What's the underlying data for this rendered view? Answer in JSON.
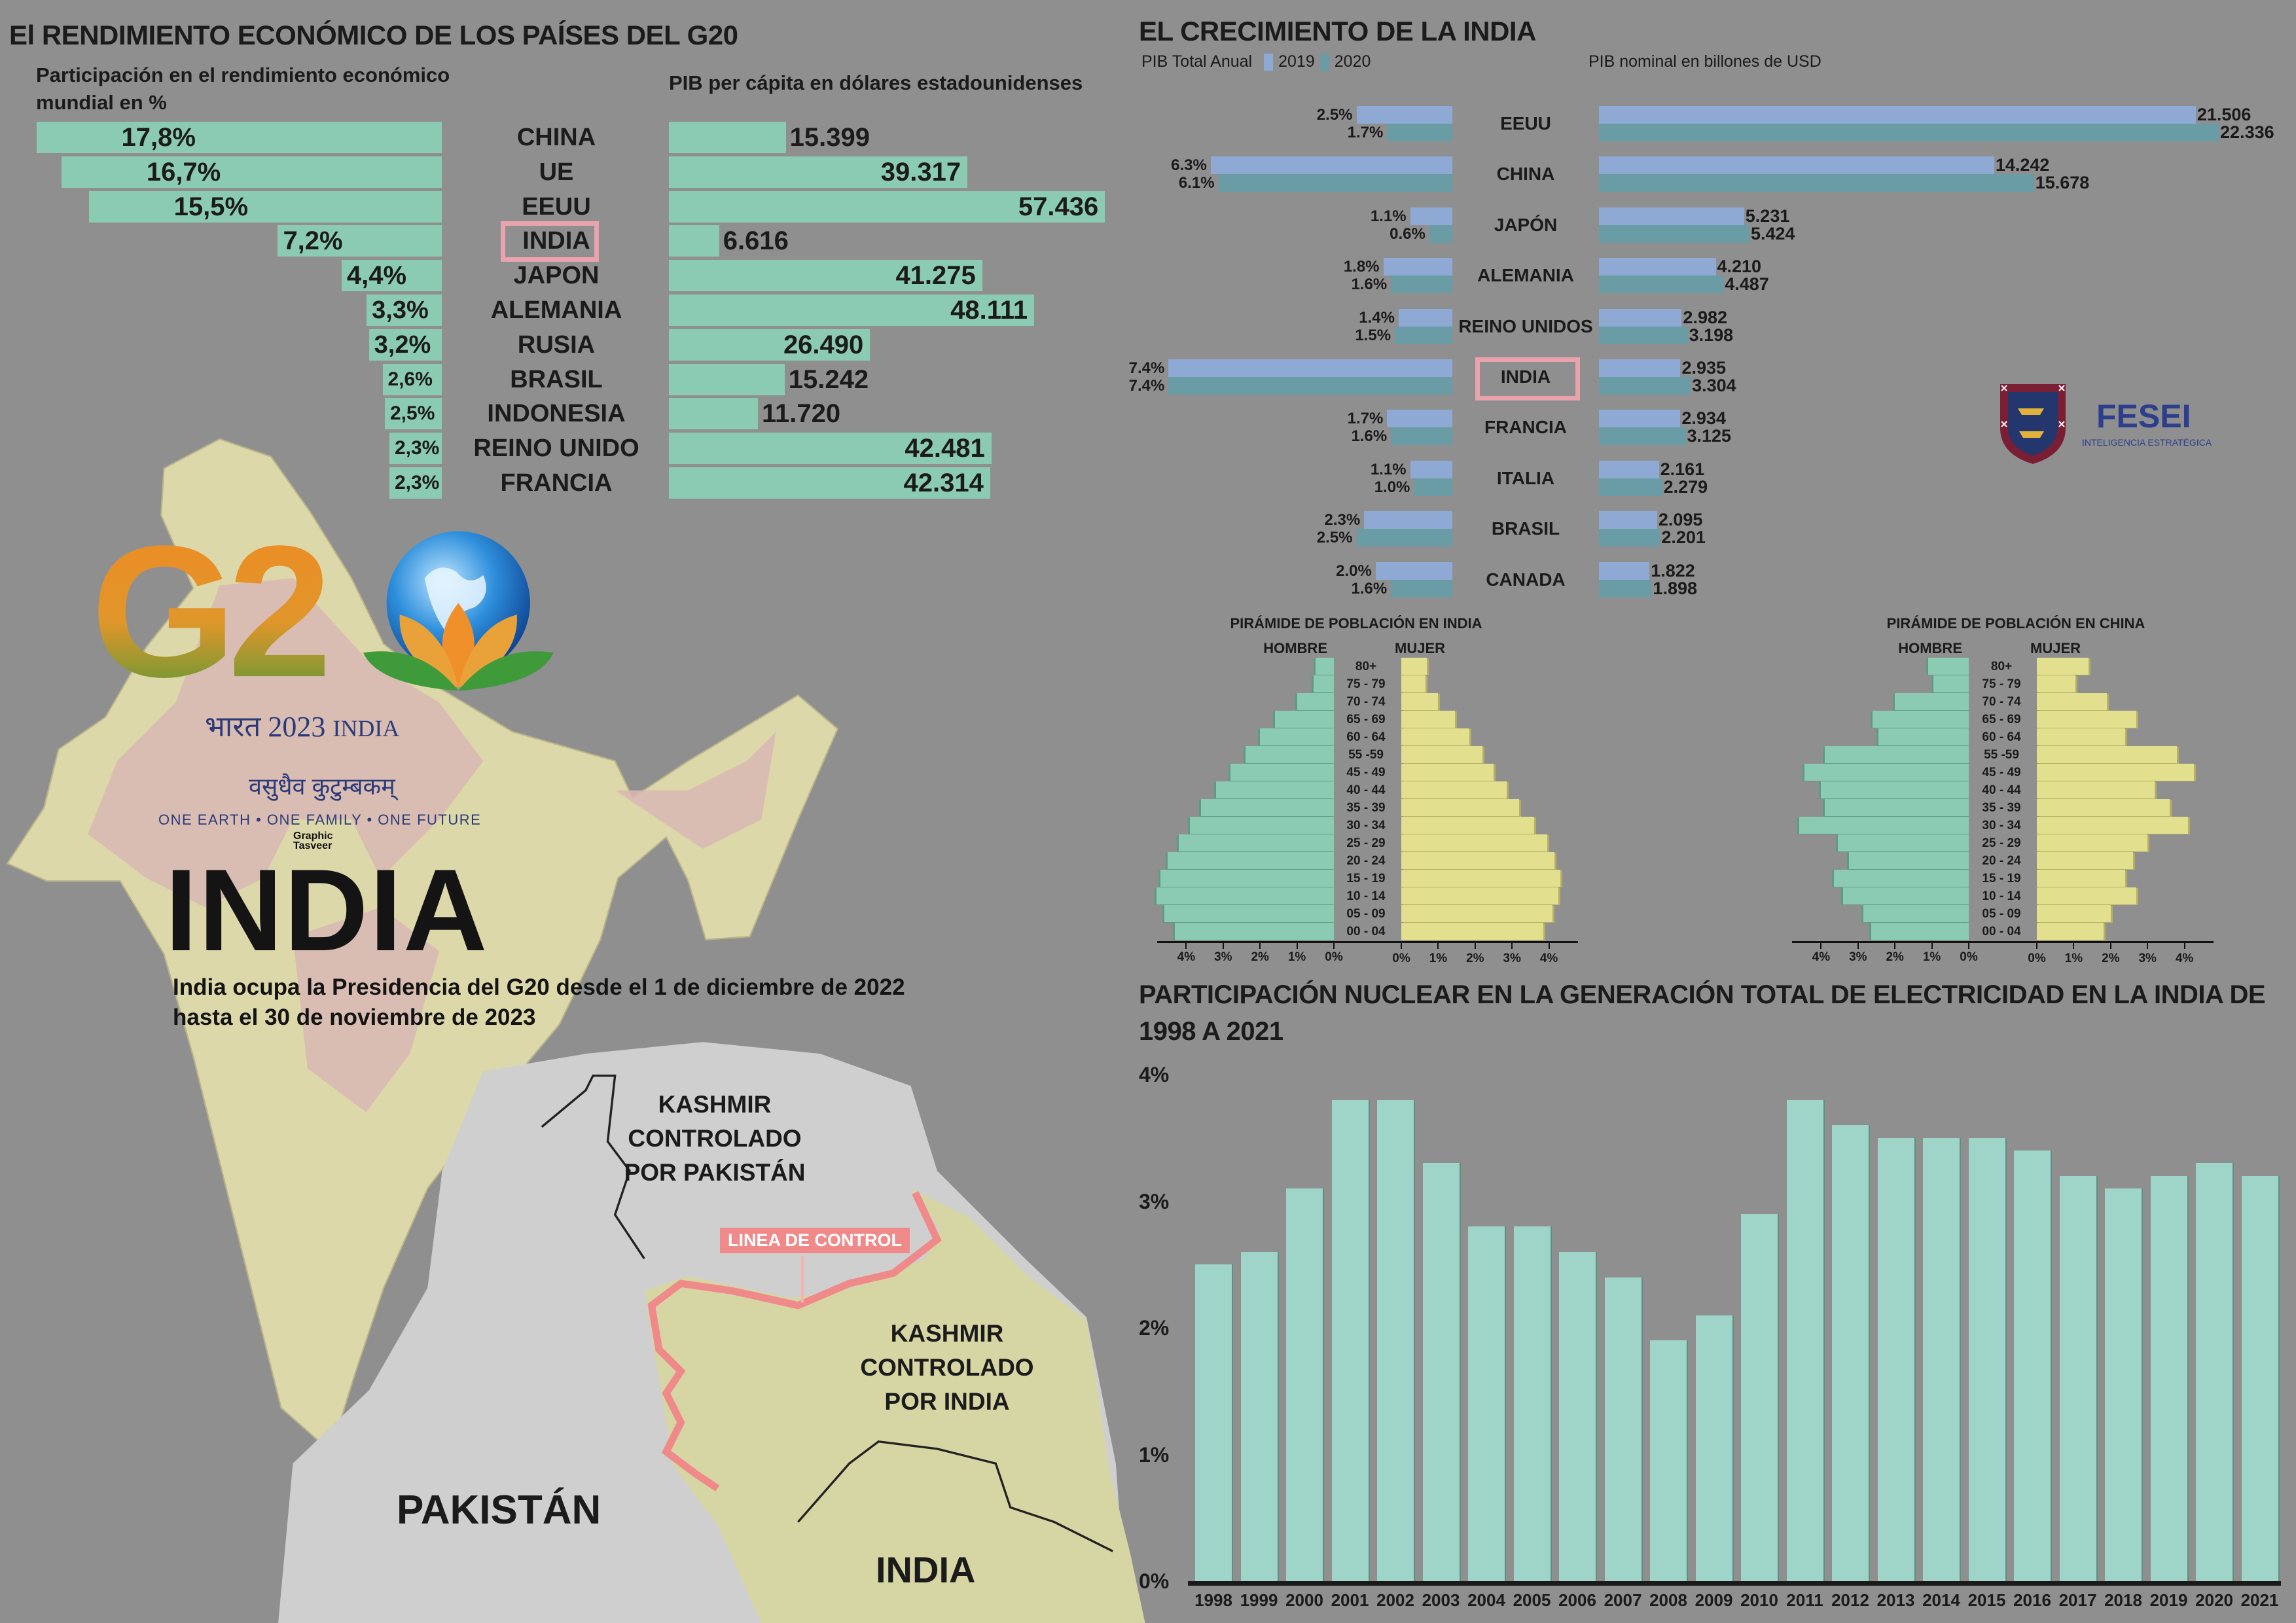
{
  "colors": {
    "background": "#8f8f8f",
    "mint": "#8ccbb3",
    "y2019": "#8eaad4",
    "y2020": "#6a9ca5",
    "male": "#8ccbb3",
    "female": "#e2df8e",
    "nuclear": "#9ed5c8",
    "highlight": "#e8a3ac",
    "line_of_control": "#f08a8a",
    "fesei": "#2c3e8c"
  },
  "left_section": {
    "title": "El RENDIMIENTO ECONÓMICO DE LOS PAÍSES DEL G20",
    "share_header": "Participación en el rendimiento económico mundial en %",
    "gdp_header": "PIB per cápita en dólares estadounidenses"
  },
  "g20_logo": {
    "text": "G20",
    "hindi": "भारत",
    "year": "2023",
    "country": "INDIA",
    "motto_hindi": "वसुधैव कुटुम्बकम्",
    "motto": "ONE EARTH • ONE FAMILY • ONE FUTURE",
    "credit": "Graphic Tasveer"
  },
  "india": {
    "heading": "INDIA",
    "caption_line1": "India ocupa la Presidencia del G20 desde el 1 de diciembre de 2022",
    "caption_line2": "hasta el 30 de noviembre de 2023"
  },
  "kashmir_map": {
    "pak_kashmir": [
      "KASHMIR",
      "CONTROLADO",
      "POR PAKISTÁN"
    ],
    "line_of_control": "LINEA DE CONTROL",
    "india_kashmir": [
      "KASHMIR",
      "CONTROLADO",
      "POR INDIA"
    ],
    "pakistan": "PAKISTÁN",
    "india": "INDIA"
  },
  "growth_section": {
    "title": "EL CRECIMIENTO DE LA INDIA",
    "legend_label": "PIB Total Anual",
    "legend_2019": "2019",
    "legend_2020": "2020",
    "nominal_label": "PIB nominal en billones de USD"
  },
  "fesei": {
    "name": "FESEI",
    "tagline": "INTELIGENCIA ESTRATÉGICA"
  },
  "chart_data": [
    {
      "type": "bar",
      "title": "El RENDIMIENTO ECONÓMICO DE LOS PAÍSES DEL G20 — Participación en el rendimiento económico mundial en % / PIB per cápita en dólares estadounidenses",
      "categories": [
        "CHINA",
        "UE",
        "EEUU",
        "INDIA",
        "JAPON",
        "ALEMANIA",
        "RUSIA",
        "BRASIL",
        "INDONESIA",
        "REINO UNIDO",
        "FRANCIA"
      ],
      "highlight": "INDIA",
      "series": [
        {
          "name": "Participación %",
          "values": [
            17.8,
            16.7,
            15.5,
            7.2,
            4.4,
            3.3,
            3.2,
            2.6,
            2.5,
            2.3,
            2.3
          ],
          "labels": [
            "17,8%",
            "16,7%",
            "15,5%",
            "7,2%",
            "4,4%",
            "3,3%",
            "3,2%",
            "2,6%",
            "2,5%",
            "2,3%",
            "2,3%"
          ]
        },
        {
          "name": "PIB per cápita USD",
          "values": [
            15399,
            39317,
            57436,
            6616,
            41275,
            48111,
            26490,
            15242,
            11720,
            42481,
            42314
          ],
          "labels": [
            "15.399",
            "39.317",
            "57.436",
            "6.616",
            "41.275",
            "48.111",
            "26.490",
            "15.242",
            "11.720",
            "42.481",
            "42.314"
          ]
        }
      ]
    },
    {
      "type": "bar",
      "title": "EL CRECIMIENTO DE LA INDIA",
      "categories": [
        "EEUU",
        "CHINA",
        "JAPÓN",
        "ALEMANIA",
        "REINO UNIDOS",
        "INDIA",
        "FRANCIA",
        "ITALIA",
        "BRASIL",
        "CANADA"
      ],
      "highlight": "INDIA",
      "series": [
        {
          "name": "PIB Total Anual 2019",
          "values": [
            2.5,
            6.3,
            1.1,
            1.8,
            1.4,
            7.4,
            1.7,
            1.1,
            2.3,
            2.0
          ],
          "labels": [
            "2.5%",
            "6.3%",
            "1.1%",
            "1.8%",
            "1.4%",
            "7.4%",
            "1.7%",
            "1.1%",
            "2.3%",
            "2.0%"
          ]
        },
        {
          "name": "PIB Total Anual 2020",
          "values": [
            1.7,
            6.1,
            0.6,
            1.6,
            1.5,
            7.4,
            1.6,
            1.0,
            2.5,
            1.6
          ],
          "labels": [
            "1.7%",
            "6.1%",
            "0.6%",
            "1.6%",
            "1.5%",
            "7.4%",
            "1.6%",
            "1.0%",
            "2.5%",
            "1.6%"
          ]
        },
        {
          "name": "PIB nominal 2019",
          "values": [
            21.506,
            14.242,
            5.231,
            4.21,
            2.982,
            2.935,
            2.934,
            2.161,
            2.095,
            1.822
          ],
          "labels": [
            "21.506",
            "14.242",
            "5.231",
            "4.210",
            "2.982",
            "2.935",
            "2.934",
            "2.161",
            "2.095",
            "1.822"
          ]
        },
        {
          "name": "PIB nominal 2020",
          "values": [
            22.336,
            15.678,
            5.424,
            4.487,
            3.198,
            3.304,
            3.125,
            2.279,
            2.201,
            1.898
          ],
          "labels": [
            "22.336",
            "15.678",
            "5.424",
            "4.487",
            "3.198",
            "3.304",
            "3.125",
            "2.279",
            "2.201",
            "1.898"
          ]
        }
      ]
    },
    {
      "type": "bar",
      "title": "PIRÁMIDE DE POBLACIÓN EN INDIA",
      "male_label": "HOMBRE",
      "female_label": "MUJER",
      "categories": [
        "80+",
        "75 - 79",
        "70 - 74",
        "65 - 69",
        "60 - 64",
        "55 -59",
        "45 - 49",
        "40 - 44",
        "35 - 39",
        "30 - 34",
        "25 - 29",
        "20 - 24",
        "15 - 19",
        "10 - 14",
        "05 - 09",
        "00 - 04"
      ],
      "male": [
        0.5,
        0.55,
        1.0,
        1.6,
        2.0,
        2.4,
        2.8,
        3.2,
        3.6,
        3.9,
        4.2,
        4.5,
        4.7,
        4.8,
        4.6,
        4.3
      ],
      "female": [
        0.7,
        0.65,
        1.0,
        1.45,
        1.85,
        2.2,
        2.5,
        2.85,
        3.2,
        3.6,
        3.95,
        4.15,
        4.3,
        4.25,
        4.1,
        3.85
      ],
      "ticks": [
        "4%",
        "3%",
        "2%",
        "1%",
        "0%"
      ],
      "female_ticks": [
        "0%",
        "1%",
        "2%",
        "3%",
        "4%"
      ],
      "xlim": [
        0,
        4
      ]
    },
    {
      "type": "bar",
      "title": "PIRÁMIDE DE POBLACIÓN EN CHINA",
      "male_label": "HOMBRE",
      "female_label": "MUJER",
      "categories": [
        "80+",
        "75 - 79",
        "70 - 74",
        "65 - 69",
        "60 - 64",
        "55 -59",
        "45 - 49",
        "40 - 44",
        "35 - 39",
        "30 - 34",
        "25 - 29",
        "20 - 24",
        "15 - 19",
        "10 - 14",
        "05 - 09",
        "00 - 04"
      ],
      "male": [
        1.1,
        0.95,
        2.0,
        2.6,
        2.45,
        3.9,
        4.45,
        4.0,
        3.9,
        4.6,
        3.55,
        3.25,
        3.65,
        3.4,
        2.85,
        2.65
      ],
      "female": [
        1.4,
        1.05,
        1.9,
        2.7,
        2.4,
        3.8,
        4.25,
        3.2,
        3.6,
        4.1,
        3.0,
        2.6,
        2.4,
        2.7,
        2.0,
        1.8
      ],
      "ticks": [
        "4%",
        "3%",
        "2%",
        "1%",
        "0%"
      ],
      "female_ticks": [
        "0%",
        "1%",
        "2%",
        "3%",
        "4%"
      ],
      "xlim": [
        0,
        4
      ]
    },
    {
      "type": "bar",
      "title": "PARTICIPACIÓN NUCLEAR EN LA GENERACIÓN TOTAL DE ELECTRICIDAD EN LA INDIA DE 1998 A 2021",
      "categories": [
        "1998",
        "1999",
        "2000",
        "2001",
        "2002",
        "2003",
        "2004",
        "2005",
        "2006",
        "2007",
        "2008",
        "2009",
        "2010",
        "2011",
        "2012",
        "2013",
        "2014",
        "2015",
        "2016",
        "2017",
        "2018",
        "2019",
        "2020",
        "2021"
      ],
      "values": [
        2.5,
        2.6,
        3.1,
        3.8,
        3.8,
        3.3,
        2.8,
        2.8,
        2.6,
        2.4,
        1.9,
        2.1,
        2.9,
        3.8,
        3.6,
        3.5,
        3.5,
        3.5,
        3.4,
        3.2,
        3.1,
        3.2,
        3.3,
        3.2
      ],
      "yticks": [
        "0%",
        "1%",
        "2%",
        "3%",
        "4%"
      ],
      "ylim": [
        0,
        4
      ],
      "xlabel": "",
      "ylabel": ""
    }
  ]
}
